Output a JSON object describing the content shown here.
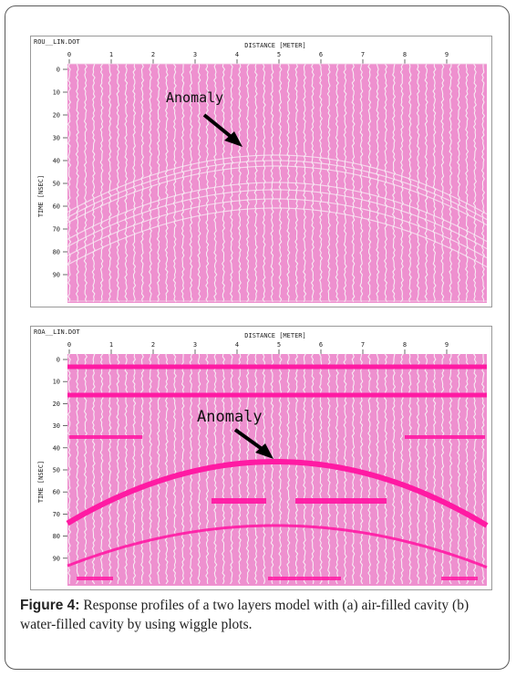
{
  "panels": [
    {
      "file_label": "ROU__LIN.DOT",
      "x_axis_title": "DISTANCE [METER]",
      "y_axis_title": "TIME [NSEC]",
      "x_ticks": [
        "0",
        "1",
        "2",
        "3",
        "4",
        "5",
        "6",
        "7",
        "8",
        "9"
      ],
      "y_ticks": [
        "0",
        "10",
        "20",
        "30",
        "40",
        "50",
        "60",
        "70",
        "80",
        "90"
      ],
      "annotation": "Anomaly",
      "colors": {
        "background": "#ee90cf",
        "trace": "#f6f6f6",
        "signal": "#ff1aa3"
      }
    },
    {
      "file_label": "ROA__LIN.DOT",
      "x_axis_title": "DISTANCE [METER]",
      "y_axis_title": "TIME [NSEC]",
      "x_ticks": [
        "0",
        "1",
        "2",
        "3",
        "4",
        "5",
        "6",
        "7",
        "8",
        "9"
      ],
      "y_ticks": [
        "0",
        "10",
        "20",
        "30",
        "40",
        "50",
        "60",
        "70",
        "80",
        "90"
      ],
      "annotation": "Anomaly",
      "colors": {
        "background": "#ee90cf",
        "trace": "#f6f6f6",
        "signal": "#ff1aa3"
      }
    }
  ],
  "caption": {
    "label": "Figure 4:",
    "text": " Response profiles of a two layers model with (a) air-filled cavity (b) water-filled cavity by using wiggle plots."
  }
}
